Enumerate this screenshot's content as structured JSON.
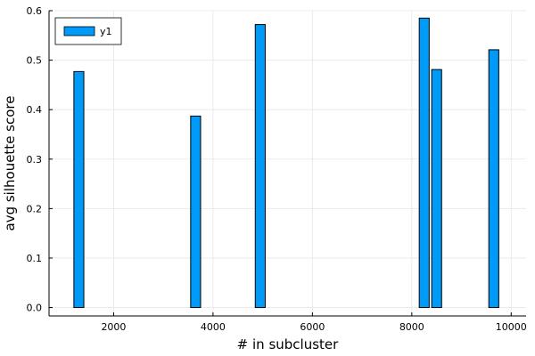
{
  "chart_data": {
    "type": "bar",
    "title": "",
    "xlabel": "# in subcluster",
    "ylabel": "avg silhouette score",
    "xlim": [
      700,
      10300
    ],
    "ylim": [
      -0.017,
      0.6
    ],
    "x_ticks": [
      2000,
      4000,
      6000,
      8000,
      10000
    ],
    "y_ticks": [
      0.0,
      0.1,
      0.2,
      0.3,
      0.4,
      0.5,
      0.6
    ],
    "x_tick_labels": [
      "2000",
      "4000",
      "6000",
      "8000",
      "10000"
    ],
    "y_tick_labels": [
      "0.0",
      "0.1",
      "0.2",
      "0.3",
      "0.4",
      "0.5",
      "0.6"
    ],
    "bar_width": 200,
    "grid": true,
    "legend_position": "top-left",
    "series": [
      {
        "name": "y1",
        "color": "#009af9",
        "x": [
          1300,
          3650,
          4950,
          8250,
          8500,
          9650
        ],
        "values": [
          0.477,
          0.387,
          0.572,
          0.585,
          0.481,
          0.521
        ]
      }
    ]
  }
}
